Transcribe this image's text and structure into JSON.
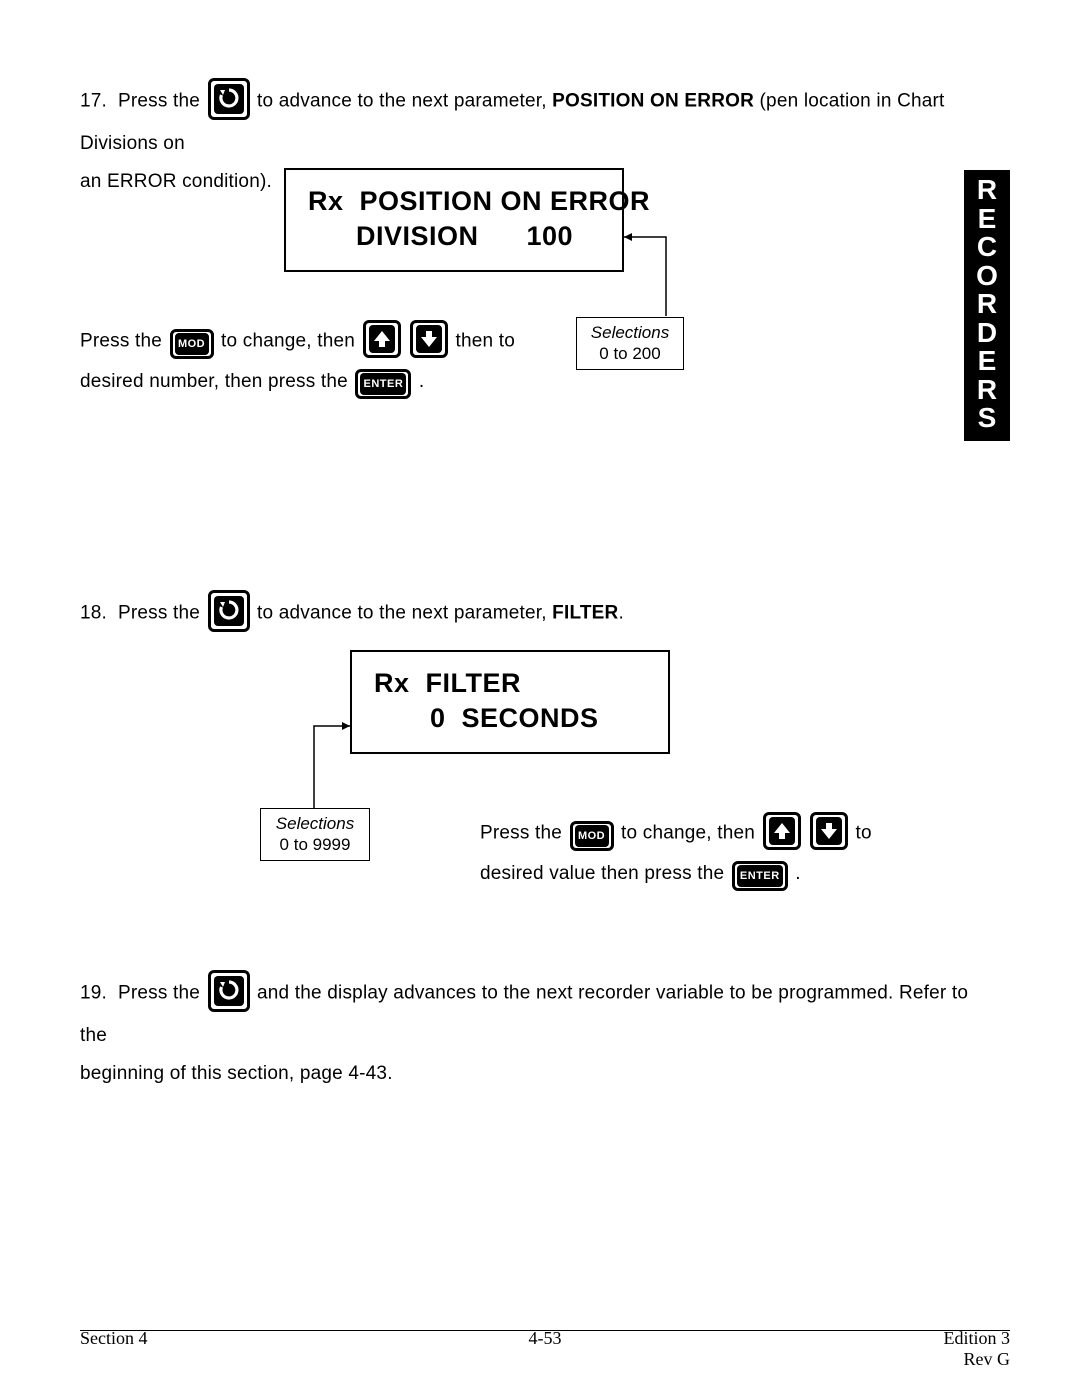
{
  "side_tab": "RECORDERS",
  "step17": {
    "num": "17.",
    "t1": "Press the",
    "t2": "to advance to the next parameter,",
    "bold": "POSITION ON ERROR",
    "t3": "(pen location in Chart Divisions on",
    "t4": "an ERROR condition)."
  },
  "display1": {
    "line1": "Rx  POSITION ON ERROR",
    "line2": "DIVISION      100"
  },
  "sel1": {
    "title": "Selections",
    "range": "0 to 200"
  },
  "instr1": {
    "a": "Press the",
    "b": "to change, then",
    "c": "then to",
    "d": "desired number, then press the",
    "e": "."
  },
  "step18": {
    "num": "18.",
    "t1": "Press the",
    "t2": "to advance to the next parameter,",
    "bold": "FILTER",
    "t3": "."
  },
  "display2": {
    "line1": "Rx  FILTER",
    "line2": "0  SECONDS"
  },
  "sel2": {
    "title": "Selections",
    "range": "0 to 9999"
  },
  "instr2": {
    "a": "Press the",
    "b": "to change, then",
    "c": "to",
    "d": "desired value then press the",
    "e": "."
  },
  "step19": {
    "num": "19.",
    "t1": "Press the",
    "t2": "and the display advances to the next recorder variable to be programmed.  Refer to the",
    "t3": "beginning of this section, page 4-43."
  },
  "footer": {
    "left": "Section 4",
    "center": "4-53",
    "right1": "Edition 3",
    "right2": "Rev G"
  },
  "colors": {
    "text": "#000000",
    "bg": "#ffffff",
    "tab_bg": "#000000",
    "tab_fg": "#ffffff"
  }
}
